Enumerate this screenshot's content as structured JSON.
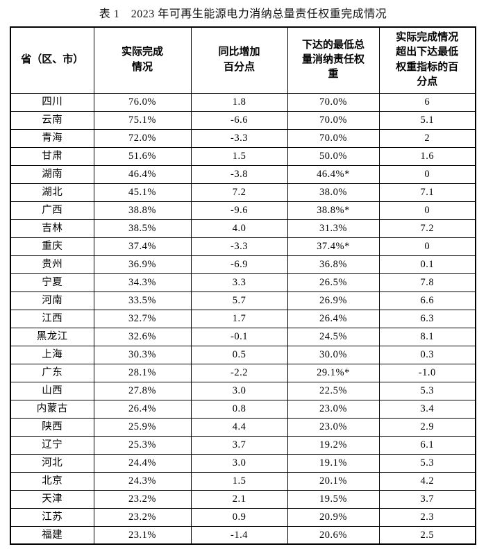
{
  "title": "表 1　2023 年可再生能源电力消纳总量责任权重完成情况",
  "table": {
    "columns": [
      "省（区、市）",
      "实际完成\n情况",
      "同比增加\n百分点",
      "下达的最低总\n量消纳责任权\n重",
      "实际完成情况\n超出下达最低\n权重指标的百\n分点"
    ],
    "rows": [
      [
        "四川",
        "76.0%",
        "1.8",
        "70.0%",
        "6"
      ],
      [
        "云南",
        "75.1%",
        "-6.6",
        "70.0%",
        "5.1"
      ],
      [
        "青海",
        "72.0%",
        "-3.3",
        "70.0%",
        "2"
      ],
      [
        "甘肃",
        "51.6%",
        "1.5",
        "50.0%",
        "1.6"
      ],
      [
        "湖南",
        "46.4%",
        "-3.8",
        "46.4%*",
        "0"
      ],
      [
        "湖北",
        "45.1%",
        "7.2",
        "38.0%",
        "7.1"
      ],
      [
        "广西",
        "38.8%",
        "-9.6",
        "38.8%*",
        "0"
      ],
      [
        "吉林",
        "38.5%",
        "4.0",
        "31.3%",
        "7.2"
      ],
      [
        "重庆",
        "37.4%",
        "-3.3",
        "37.4%*",
        "0"
      ],
      [
        "贵州",
        "36.9%",
        "-6.9",
        "36.8%",
        "0.1"
      ],
      [
        "宁夏",
        "34.3%",
        "3.3",
        "26.5%",
        "7.8"
      ],
      [
        "河南",
        "33.5%",
        "5.7",
        "26.9%",
        "6.6"
      ],
      [
        "江西",
        "32.7%",
        "1.7",
        "26.4%",
        "6.3"
      ],
      [
        "黑龙江",
        "32.6%",
        "-0.1",
        "24.5%",
        "8.1"
      ],
      [
        "上海",
        "30.3%",
        "0.5",
        "30.0%",
        "0.3"
      ],
      [
        "广东",
        "28.1%",
        "-2.2",
        "29.1%*",
        "-1.0"
      ],
      [
        "山西",
        "27.8%",
        "3.0",
        "22.5%",
        "5.3"
      ],
      [
        "内蒙古",
        "26.4%",
        "0.8",
        "23.0%",
        "3.4"
      ],
      [
        "陕西",
        "25.9%",
        "4.4",
        "23.0%",
        "2.9"
      ],
      [
        "辽宁",
        "25.3%",
        "3.7",
        "19.2%",
        "6.1"
      ],
      [
        "河北",
        "24.4%",
        "3.0",
        "19.1%",
        "5.3"
      ],
      [
        "北京",
        "24.3%",
        "1.5",
        "20.1%",
        "4.2"
      ],
      [
        "天津",
        "23.2%",
        "2.1",
        "19.5%",
        "3.7"
      ],
      [
        "江苏",
        "23.2%",
        "0.9",
        "20.9%",
        "2.3"
      ],
      [
        "福建",
        "23.1%",
        "-1.4",
        "20.6%",
        "2.5"
      ]
    ]
  }
}
